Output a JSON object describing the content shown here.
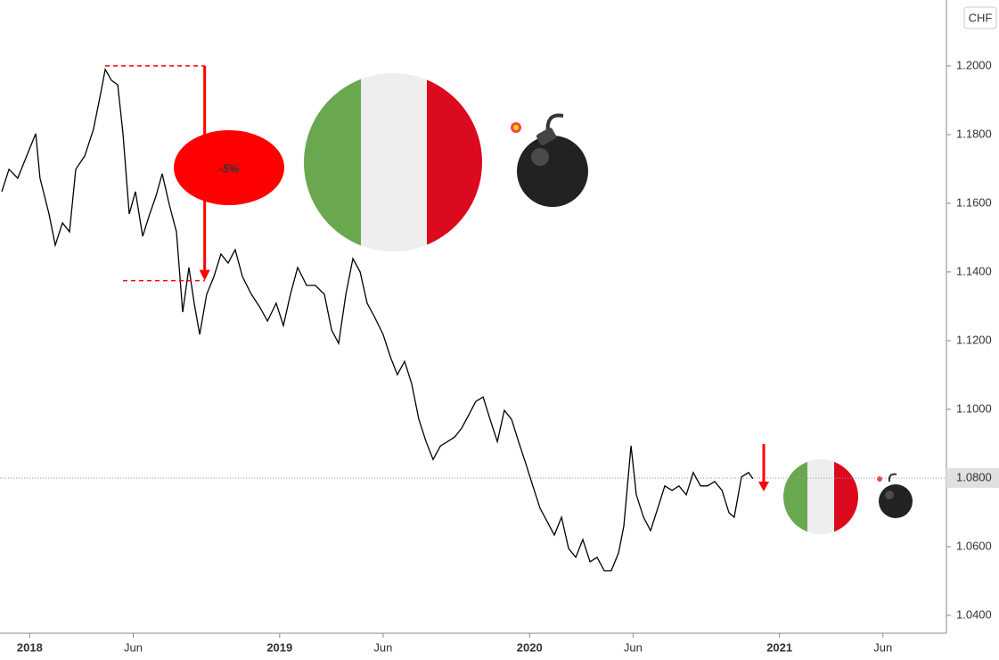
{
  "chart_data": {
    "type": "line",
    "currency": "CHF",
    "x": [
      2017.888,
      2017.917,
      2017.952,
      2017.988,
      2018.024,
      2018.041,
      2018.077,
      2018.102,
      2018.131,
      2018.159,
      2018.184,
      2018.22,
      2018.255,
      2018.28,
      2018.302,
      2018.327,
      2018.352,
      2018.373,
      2018.398,
      2018.423,
      2018.452,
      2018.48,
      2018.505,
      2018.53,
      2018.559,
      2018.587,
      2018.612,
      2018.637,
      2018.658,
      2018.68,
      2018.708,
      2018.737,
      2018.765,
      2018.794,
      2018.822,
      2018.851,
      2018.887,
      2018.922,
      2018.951,
      2018.986,
      2019.015,
      2019.043,
      2019.072,
      2019.108,
      2019.143,
      2019.179,
      2019.208,
      2019.236,
      2019.265,
      2019.293,
      2019.322,
      2019.35,
      2019.379,
      2019.414,
      2019.443,
      2019.471,
      2019.5,
      2019.528,
      2019.557,
      2019.586,
      2019.614,
      2019.643,
      2019.671,
      2019.7,
      2019.728,
      2019.757,
      2019.785,
      2019.814,
      2019.842,
      2019.871,
      2019.899,
      2019.928,
      2019.956,
      2019.985,
      2020.013,
      2020.042,
      2020.071,
      2020.099,
      2020.128,
      2020.156,
      2020.185,
      2020.213,
      2020.242,
      2020.27,
      2020.299,
      2020.327,
      2020.356,
      2020.377,
      2020.406,
      2020.427,
      2020.456,
      2020.484,
      2020.513,
      2020.541,
      2020.57,
      2020.598,
      2020.627,
      2020.655,
      2020.684,
      2020.712,
      2020.741,
      2020.77,
      2020.798,
      2020.819,
      2020.848,
      2020.876,
      2020.894
    ],
    "series": [
      {
        "color": "#000000",
        "values": [
          1.1634,
          1.1699,
          1.1673,
          1.1738,
          1.1803,
          1.1673,
          1.1569,
          1.1478,
          1.1543,
          1.1517,
          1.1699,
          1.1738,
          1.1816,
          1.1906,
          1.199,
          1.1958,
          1.1945,
          1.1803,
          1.1569,
          1.1634,
          1.1504,
          1.1569,
          1.1621,
          1.1686,
          1.1595,
          1.1517,
          1.1283,
          1.1413,
          1.1309,
          1.1218,
          1.1335,
          1.1387,
          1.1452,
          1.1426,
          1.1465,
          1.1387,
          1.1335,
          1.1296,
          1.1257,
          1.1309,
          1.1244,
          1.1335,
          1.1413,
          1.1361,
          1.1361,
          1.1335,
          1.1231,
          1.1192,
          1.1335,
          1.1439,
          1.14,
          1.1309,
          1.127,
          1.1218,
          1.1153,
          1.1101,
          1.114,
          1.1075,
          1.0971,
          1.0906,
          1.0854,
          1.0893,
          1.0906,
          1.0919,
          1.0945,
          1.0984,
          1.1023,
          1.1036,
          1.0971,
          1.0906,
          1.0997,
          1.0971,
          1.0906,
          1.0842,
          1.0777,
          1.0712,
          1.0673,
          1.0634,
          1.0686,
          1.0595,
          1.0569,
          1.0621,
          1.0556,
          1.0569,
          1.053,
          1.053,
          1.0582,
          1.066,
          1.0894,
          1.0751,
          1.0686,
          1.0647,
          1.0712,
          1.0777,
          1.0764,
          1.0777,
          1.0751,
          1.0816,
          1.0777,
          1.0777,
          1.079,
          1.0764,
          1.0699,
          1.0686,
          1.0803,
          1.0816,
          1.0798
        ]
      }
    ],
    "xlim": [
      2017.881,
      2021.668
    ],
    "xticks": [
      {
        "value": 2018,
        "label": "2018"
      },
      {
        "value": 2018.414,
        "label": "Jun"
      },
      {
        "value": 2019,
        "label": "2019"
      },
      {
        "value": 2019.414,
        "label": "Jun"
      },
      {
        "value": 2020,
        "label": "2020"
      },
      {
        "value": 2020.414,
        "label": "Jun"
      },
      {
        "value": 2021,
        "label": "2021"
      },
      {
        "value": 2021.414,
        "label": "Jun"
      }
    ],
    "ylim": [
      1.0348,
      1.2192
    ],
    "yticks": [
      {
        "value": 1.04,
        "label": "1.0400"
      },
      {
        "value": 1.06,
        "label": "1.0600"
      },
      {
        "value": 1.08,
        "label": "1.0800"
      },
      {
        "value": 1.1,
        "label": "1.1000"
      },
      {
        "value": 1.12,
        "label": "1.1200"
      },
      {
        "value": 1.14,
        "label": "1.1400"
      },
      {
        "value": 1.16,
        "label": "1.1600"
      },
      {
        "value": 1.18,
        "label": "1.1800"
      },
      {
        "value": 1.2,
        "label": "1.2000"
      }
    ],
    "last_price": {
      "value": 1.08,
      "label": "1.0800"
    },
    "drop_annotation": {
      "label": "-5%",
      "color": "#ff0000",
      "from": 1.2,
      "to": 1.1375,
      "x_start": 2018.302,
      "x_end": 2018.7
    }
  }
}
